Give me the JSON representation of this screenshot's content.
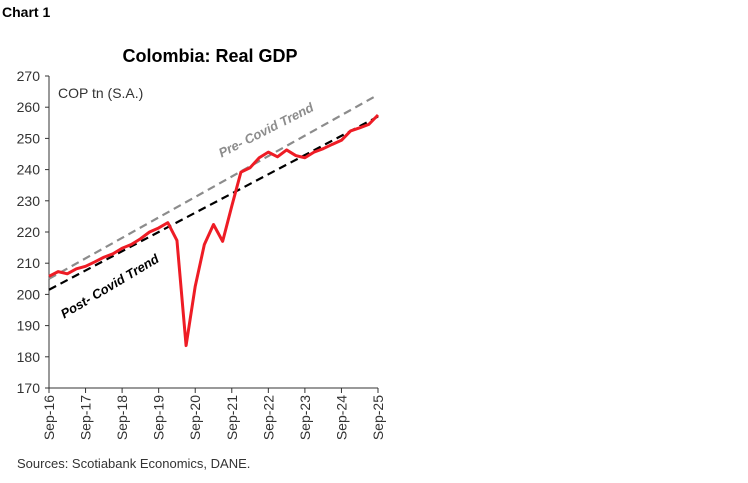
{
  "header": {
    "chart_label": "Chart 1"
  },
  "footer": {
    "sources": "Sources: Scotiabank Economics, DANE."
  },
  "chart_data": {
    "type": "line",
    "title": "Colombia: Real GDP",
    "unit_label": "COP tn (S.A.)",
    "ylim": [
      170,
      270
    ],
    "yticks": [
      170,
      180,
      190,
      200,
      210,
      220,
      230,
      240,
      250,
      260,
      270
    ],
    "xtick_labels": [
      "Sep-16",
      "Sep-17",
      "Sep-18",
      "Sep-19",
      "Sep-20",
      "Sep-21",
      "Sep-22",
      "Sep-23",
      "Sep-24",
      "Sep-25"
    ],
    "x_frequency": "quarterly",
    "grid": false,
    "series": [
      {
        "color": "#ee1c25",
        "style": "solid",
        "values": [
          205.8,
          207.3,
          206.6,
          208.2,
          209.0,
          210.4,
          211.9,
          213.0,
          214.8,
          216.0,
          217.8,
          220.0,
          221.3,
          223.0,
          217.3,
          183.6,
          202.6,
          216.0,
          222.4,
          217.0,
          228.3,
          239.2,
          240.6,
          243.8,
          245.6,
          244.1,
          246.3,
          244.5,
          243.8,
          245.6,
          246.7,
          248.1,
          249.4,
          252.4,
          253.4,
          254.5,
          257.5
        ]
      },
      {
        "name": "Pre- Covid Trend",
        "color": "#8c8c8c",
        "style": "dashed",
        "start": [
          "Sep-16",
          205
        ],
        "end": [
          "Sep-25",
          264
        ]
      },
      {
        "name": "Post- Covid Trend",
        "color": "#000000",
        "style": "dashed",
        "start": [
          "Sep-16",
          201.5
        ],
        "end": [
          "Sep-25",
          257
        ]
      }
    ]
  }
}
